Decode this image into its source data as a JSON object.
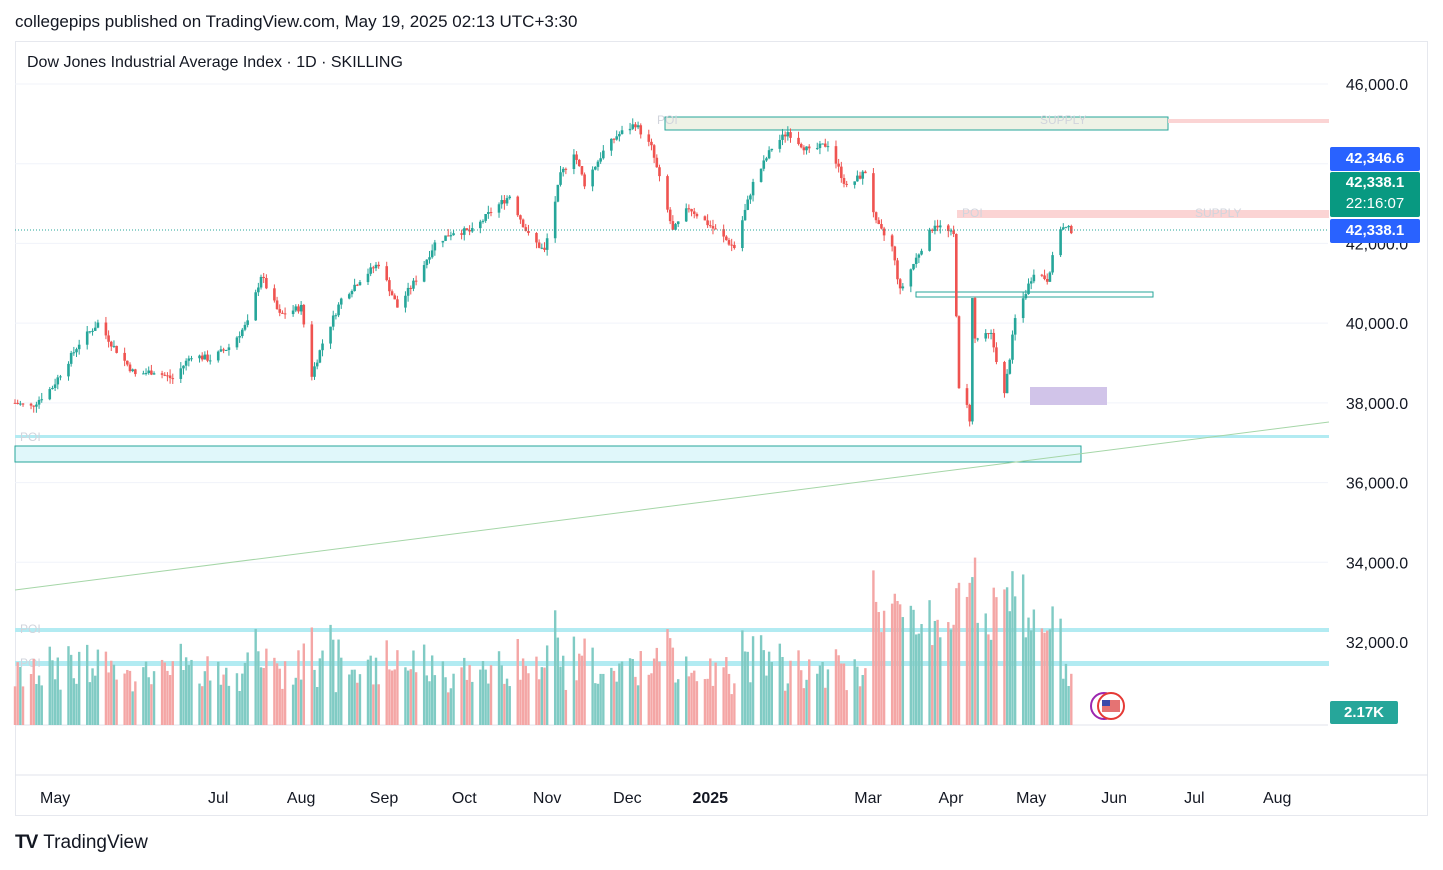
{
  "header": {
    "publisher": "collegepips published on TradingView.com, May 19, 2025 02:13 UTC+3:30"
  },
  "chart_header": {
    "symbol_title": "Dow Jones Industrial Average Index · 1D · SKILLING"
  },
  "price_tags": {
    "high": "42,346.6",
    "last": "42,338.1",
    "countdown": "22:16:07",
    "last2": "42,338.1",
    "volume": "2.17K"
  },
  "zone_labels": {
    "poi_top": "POI",
    "supply_top": "SUPPLY",
    "poi_mid": "POI",
    "supply_mid": "SUPPLY",
    "poi_low": "POI",
    "poi_vol1": "POI",
    "poi_vol2": "POI"
  },
  "footer": {
    "brand": "TradingView"
  },
  "colors": {
    "up": "#26a69a",
    "down": "#ef5350",
    "vol_up": "#80cbc4",
    "vol_down": "#f4a6a5",
    "supply_fill": "#fbd4d4",
    "demand_border": "#26a69a",
    "ghost_text": "#d1d4dc"
  },
  "chart_data": {
    "type": "candlestick",
    "title": "Dow Jones Industrial Average Index · 1D · SKILLING",
    "ylim": [
      33000,
      46300
    ],
    "y_ticks": [
      46000,
      40000,
      38000,
      36000,
      34000,
      32000
    ],
    "y_tick_labels": [
      "46,000.0",
      "40,000.0",
      "38,000.0",
      "36,000.0",
      "34,000.0",
      "32,000.0"
    ],
    "partial_tick": "42,000.0",
    "x_tick_labels": [
      "May",
      "Jul",
      "Aug",
      "Sep",
      "Oct",
      "Nov",
      "Dec",
      "2025",
      "Mar",
      "Apr",
      "May",
      "Jun",
      "Jul",
      "Aug"
    ],
    "x_tick_dates": [
      "2024-05-01",
      "2024-07-01",
      "2024-08-01",
      "2024-09-01",
      "2024-10-01",
      "2024-11-01",
      "2024-12-01",
      "2025-01-01",
      "2025-03-01",
      "2025-04-01",
      "2025-05-01",
      "2025-06-01",
      "2025-07-01",
      "2025-08-01"
    ],
    "x_range": [
      "2024-04-16",
      "2025-08-17"
    ],
    "last_price": 42338.1,
    "closes": [
      {
        "date": "2024-04-16",
        "close": 38000
      },
      {
        "date": "2024-04-22",
        "close": 37900
      },
      {
        "date": "2024-04-30",
        "close": 38400
      },
      {
        "date": "2024-05-10",
        "close": 39500
      },
      {
        "date": "2024-05-17",
        "close": 40000
      },
      {
        "date": "2024-05-23",
        "close": 39400
      },
      {
        "date": "2024-05-31",
        "close": 38700
      },
      {
        "date": "2024-06-07",
        "close": 38800
      },
      {
        "date": "2024-06-14",
        "close": 38600
      },
      {
        "date": "2024-06-21",
        "close": 39200
      },
      {
        "date": "2024-06-28",
        "close": 39100
      },
      {
        "date": "2024-07-05",
        "close": 39400
      },
      {
        "date": "2024-07-12",
        "close": 40000
      },
      {
        "date": "2024-07-17",
        "close": 41200
      },
      {
        "date": "2024-07-24",
        "close": 40200
      },
      {
        "date": "2024-08-01",
        "close": 40400
      },
      {
        "date": "2024-08-05",
        "close": 38700
      },
      {
        "date": "2024-08-09",
        "close": 39500
      },
      {
        "date": "2024-08-16",
        "close": 40600
      },
      {
        "date": "2024-08-23",
        "close": 41100
      },
      {
        "date": "2024-08-30",
        "close": 41500
      },
      {
        "date": "2024-09-06",
        "close": 40400
      },
      {
        "date": "2024-09-13",
        "close": 41100
      },
      {
        "date": "2024-09-20",
        "close": 42000
      },
      {
        "date": "2024-09-27",
        "close": 42300
      },
      {
        "date": "2024-10-04",
        "close": 42300
      },
      {
        "date": "2024-10-11",
        "close": 42800
      },
      {
        "date": "2024-10-18",
        "close": 43200
      },
      {
        "date": "2024-10-25",
        "close": 42200
      },
      {
        "date": "2024-10-31",
        "close": 41800
      },
      {
        "date": "2024-11-06",
        "close": 43700
      },
      {
        "date": "2024-11-11",
        "close": 44300
      },
      {
        "date": "2024-11-15",
        "close": 43500
      },
      {
        "date": "2024-11-22",
        "close": 44300
      },
      {
        "date": "2024-11-27",
        "close": 44700
      },
      {
        "date": "2024-12-04",
        "close": 45000
      },
      {
        "date": "2024-12-10",
        "close": 44400
      },
      {
        "date": "2024-12-18",
        "close": 42300
      },
      {
        "date": "2024-12-24",
        "close": 42900
      },
      {
        "date": "2024-12-31",
        "close": 42500
      },
      {
        "date": "2025-01-10",
        "close": 41900
      },
      {
        "date": "2025-01-17",
        "close": 43500
      },
      {
        "date": "2025-01-24",
        "close": 44400
      },
      {
        "date": "2025-01-30",
        "close": 44800
      },
      {
        "date": "2025-02-07",
        "close": 44300
      },
      {
        "date": "2025-02-14",
        "close": 44500
      },
      {
        "date": "2025-02-21",
        "close": 43400
      },
      {
        "date": "2025-02-28",
        "close": 43800
      },
      {
        "date": "2025-03-04",
        "close": 42500
      },
      {
        "date": "2025-03-10",
        "close": 41900
      },
      {
        "date": "2025-03-13",
        "close": 40800
      },
      {
        "date": "2025-03-21",
        "close": 41900
      },
      {
        "date": "2025-03-26",
        "close": 42500
      },
      {
        "date": "2025-04-02",
        "close": 42200
      },
      {
        "date": "2025-04-04",
        "close": 38300
      },
      {
        "date": "2025-04-07",
        "close": 37900
      },
      {
        "date": "2025-04-08",
        "close": 37600
      },
      {
        "date": "2025-04-09",
        "close": 40600
      },
      {
        "date": "2025-04-10",
        "close": 39600
      },
      {
        "date": "2025-04-16",
        "close": 39700
      },
      {
        "date": "2025-04-21",
        "close": 38200
      },
      {
        "date": "2025-04-25",
        "close": 40100
      },
      {
        "date": "2025-05-02",
        "close": 41300
      },
      {
        "date": "2025-05-07",
        "close": 41100
      },
      {
        "date": "2025-05-12",
        "close": 42400
      },
      {
        "date": "2025-05-16",
        "close": 42338
      }
    ],
    "volume": {
      "last_label": "2.17K"
    }
  }
}
